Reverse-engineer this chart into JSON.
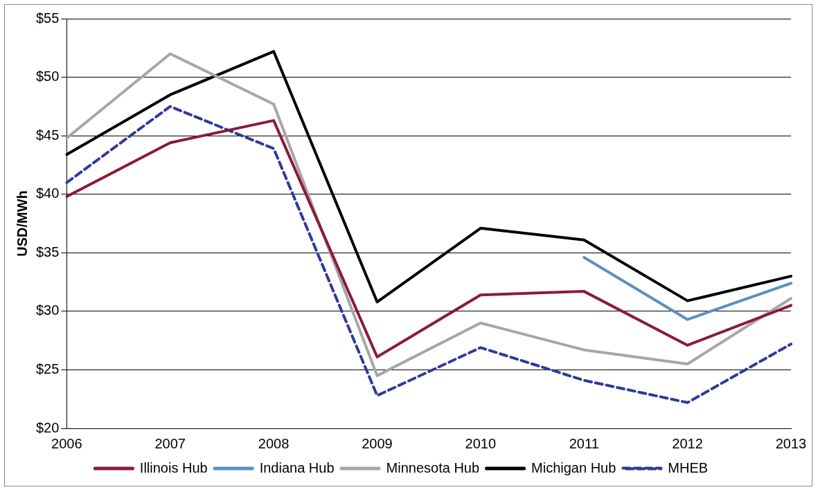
{
  "chart_data": {
    "type": "line",
    "ylabel": "USD/MWh",
    "categories": [
      "2006",
      "2007",
      "2008",
      "2009",
      "2010",
      "2011",
      "2012",
      "2013"
    ],
    "series": [
      {
        "name": "Illinois Hub",
        "color": "#8b1a3a",
        "values": [
          39.8,
          44.4,
          46.3,
          26.1,
          31.4,
          31.7,
          27.1,
          30.5
        ]
      },
      {
        "name": "Indiana Hub",
        "color": "#5b8fc0",
        "values": [
          null,
          null,
          null,
          null,
          null,
          34.6,
          29.3,
          32.4
        ]
      },
      {
        "name": "Minnesota Hub",
        "color": "#a6a6a6",
        "values": [
          44.8,
          52.0,
          47.7,
          24.5,
          29.0,
          26.7,
          25.5,
          31.1
        ]
      },
      {
        "name": "Michigan Hub",
        "color": "#000000",
        "values": [
          43.4,
          48.5,
          52.2,
          30.8,
          37.1,
          36.1,
          30.9,
          33.0
        ]
      },
      {
        "name": "MHEB",
        "color": "#2e3a9a",
        "line_style": "dashed",
        "values": [
          41.0,
          47.5,
          43.9,
          22.8,
          26.9,
          24.1,
          22.2,
          27.2
        ]
      }
    ],
    "ylim": [
      20,
      55
    ],
    "yticks": [
      {
        "value": 20,
        "label": "$20"
      },
      {
        "value": 25,
        "label": "$25"
      },
      {
        "value": 30,
        "label": "$30"
      },
      {
        "value": 35,
        "label": "$35"
      },
      {
        "value": 40,
        "label": "$40"
      },
      {
        "value": 45,
        "label": "$45"
      },
      {
        "value": 50,
        "label": "$50"
      },
      {
        "value": 55,
        "label": "$55"
      }
    ],
    "grid": "y",
    "legend": "bottom",
    "marker": "none",
    "line_style": "solid"
  }
}
